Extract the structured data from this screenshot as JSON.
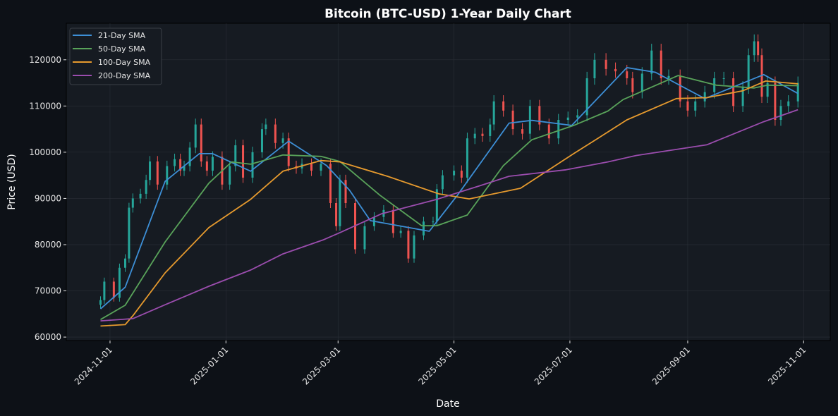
{
  "chart_data": {
    "type": "line",
    "title": "Bitcoin (BTC-USD) 1-Year Daily Chart",
    "xlabel": "Date",
    "ylabel": "Price (USD)",
    "ylim": [
      59250,
      127900
    ],
    "xlim": [
      "2024-10-09",
      "2025-11-15"
    ],
    "grid": true,
    "legend_placement": "top-left",
    "yticks": [
      60000,
      70000,
      80000,
      90000,
      100000,
      110000,
      120000
    ],
    "ytick_labels": [
      "60000",
      "70000",
      "80000",
      "90000",
      "100000",
      "110000",
      "120000"
    ],
    "xticks": [
      "2024-11-01",
      "2025-01-01",
      "2025-03-01",
      "2025-05-01",
      "2025-07-01",
      "2025-09-01",
      "2025-11-01"
    ],
    "colors": {
      "up": "#26a69a",
      "down": "#ef5350",
      "background": "#0d1117",
      "plot_bg": "#161b22"
    },
    "price_closes": [
      [
        "2024-10-27",
        68000
      ],
      [
        "2024-10-29",
        72000
      ],
      [
        "2024-11-03",
        68500
      ],
      [
        "2024-11-06",
        75000
      ],
      [
        "2024-11-09",
        77000
      ],
      [
        "2024-11-11",
        88000
      ],
      [
        "2024-11-13",
        90000
      ],
      [
        "2024-11-17",
        91000
      ],
      [
        "2024-11-20",
        94000
      ],
      [
        "2024-11-22",
        98000
      ],
      [
        "2024-11-26",
        93000
      ],
      [
        "2024-12-01",
        97000
      ],
      [
        "2024-12-05",
        98500
      ],
      [
        "2024-12-08",
        96000
      ],
      [
        "2024-12-10",
        97000
      ],
      [
        "2024-12-13",
        101000
      ],
      [
        "2024-12-16",
        106000
      ],
      [
        "2024-12-19",
        98000
      ],
      [
        "2024-12-22",
        96000
      ],
      [
        "2024-12-25",
        99000
      ],
      [
        "2024-12-30",
        93000
      ],
      [
        "2025-01-03",
        97000
      ],
      [
        "2025-01-06",
        101500
      ],
      [
        "2025-01-10",
        94500
      ],
      [
        "2025-01-15",
        100000
      ],
      [
        "2025-01-20",
        105000
      ],
      [
        "2025-01-22",
        106000
      ],
      [
        "2025-01-27",
        102000
      ],
      [
        "2025-01-31",
        103000
      ],
      [
        "2025-02-03",
        97000
      ],
      [
        "2025-02-07",
        96500
      ],
      [
        "2025-02-10",
        97500
      ],
      [
        "2025-02-15",
        96000
      ],
      [
        "2025-02-20",
        97500
      ],
      [
        "2025-02-25",
        89000
      ],
      [
        "2025-02-28",
        84000
      ],
      [
        "2025-03-02",
        94000
      ],
      [
        "2025-03-05",
        89000
      ],
      [
        "2025-03-10",
        79000
      ],
      [
        "2025-03-15",
        84000
      ],
      [
        "2025-03-20",
        86000
      ],
      [
        "2025-03-25",
        87500
      ],
      [
        "2025-03-30",
        82500
      ],
      [
        "2025-04-03",
        83000
      ],
      [
        "2025-04-07",
        77000
      ],
      [
        "2025-04-10",
        82000
      ],
      [
        "2025-04-15",
        85000
      ],
      [
        "2025-04-20",
        85000
      ],
      [
        "2025-04-22",
        92000
      ],
      [
        "2025-04-25",
        95000
      ],
      [
        "2025-05-01",
        96000
      ],
      [
        "2025-05-05",
        94500
      ],
      [
        "2025-05-08",
        103000
      ],
      [
        "2025-05-12",
        104000
      ],
      [
        "2025-05-16",
        103500
      ],
      [
        "2025-05-20",
        106000
      ],
      [
        "2025-05-22",
        111000
      ],
      [
        "2025-05-27",
        109000
      ],
      [
        "2025-06-01",
        105000
      ],
      [
        "2025-06-06",
        104000
      ],
      [
        "2025-06-10",
        110000
      ],
      [
        "2025-06-15",
        106000
      ],
      [
        "2025-06-20",
        103000
      ],
      [
        "2025-06-25",
        107000
      ],
      [
        "2025-06-30",
        107500
      ],
      [
        "2025-07-05",
        108000
      ],
      [
        "2025-07-10",
        116000
      ],
      [
        "2025-07-14",
        120000
      ],
      [
        "2025-07-20",
        118000
      ],
      [
        "2025-07-25",
        117500
      ],
      [
        "2025-07-31",
        116000
      ],
      [
        "2025-08-03",
        113000
      ],
      [
        "2025-08-08",
        117000
      ],
      [
        "2025-08-13",
        122000
      ],
      [
        "2025-08-18",
        116000
      ],
      [
        "2025-08-22",
        116500
      ],
      [
        "2025-08-28",
        111000
      ],
      [
        "2025-09-01",
        109000
      ],
      [
        "2025-09-05",
        111000
      ],
      [
        "2025-09-10",
        113000
      ],
      [
        "2025-09-15",
        116000
      ],
      [
        "2025-09-20",
        116000
      ],
      [
        "2025-09-25",
        110000
      ],
      [
        "2025-09-30",
        114000
      ],
      [
        "2025-10-03",
        121000
      ],
      [
        "2025-10-06",
        124000
      ],
      [
        "2025-10-08",
        121000
      ],
      [
        "2025-10-10",
        112000
      ],
      [
        "2025-10-13",
        115000
      ],
      [
        "2025-10-17",
        107000
      ],
      [
        "2025-10-20",
        110000
      ],
      [
        "2025-10-24",
        111000
      ],
      [
        "2025-10-29",
        115000
      ]
    ],
    "series": [
      {
        "name": "21-Day SMA",
        "color": "#3d8fd6",
        "points": [
          [
            "2024-10-27",
            66100
          ],
          [
            "2024-11-09",
            70800
          ],
          [
            "2024-11-30",
            93700
          ],
          [
            "2024-12-18",
            99700
          ],
          [
            "2024-12-25",
            99700
          ],
          [
            "2025-01-14",
            95900
          ],
          [
            "2025-02-03",
            102400
          ],
          [
            "2025-02-23",
            97100
          ],
          [
            "2025-03-07",
            91800
          ],
          [
            "2025-03-18",
            85200
          ],
          [
            "2025-04-18",
            82900
          ],
          [
            "2025-05-03",
            90800
          ],
          [
            "2025-05-30",
            106300
          ],
          [
            "2025-06-11",
            106900
          ],
          [
            "2025-07-02",
            105800
          ],
          [
            "2025-07-31",
            118300
          ],
          [
            "2025-08-15",
            117300
          ],
          [
            "2025-09-10",
            111600
          ],
          [
            "2025-10-11",
            116800
          ],
          [
            "2025-10-29",
            112700
          ]
        ]
      },
      {
        "name": "50-Day SMA",
        "color": "#59a35a",
        "points": [
          [
            "2024-10-27",
            63800
          ],
          [
            "2024-11-09",
            66900
          ],
          [
            "2024-11-30",
            80600
          ],
          [
            "2024-12-23",
            93300
          ],
          [
            "2025-01-04",
            97900
          ],
          [
            "2025-01-14",
            97400
          ],
          [
            "2025-01-31",
            99400
          ],
          [
            "2025-02-20",
            99100
          ],
          [
            "2025-03-02",
            98000
          ],
          [
            "2025-03-23",
            90700
          ],
          [
            "2025-04-14",
            84100
          ],
          [
            "2025-04-22",
            84100
          ],
          [
            "2025-05-08",
            86400
          ],
          [
            "2025-05-27",
            97100
          ],
          [
            "2025-06-11",
            102700
          ],
          [
            "2025-07-03",
            105800
          ],
          [
            "2025-07-21",
            108900
          ],
          [
            "2025-07-29",
            111400
          ],
          [
            "2025-08-27",
            116600
          ],
          [
            "2025-09-16",
            114500
          ],
          [
            "2025-10-06",
            113900
          ],
          [
            "2025-10-13",
            114500
          ],
          [
            "2025-10-29",
            114400
          ]
        ]
      },
      {
        "name": "100-Day SMA",
        "color": "#e69a2e",
        "points": [
          [
            "2024-10-27",
            62400
          ],
          [
            "2024-11-09",
            62700
          ],
          [
            "2024-11-13",
            64600
          ],
          [
            "2024-11-30",
            73900
          ],
          [
            "2024-12-23",
            83700
          ],
          [
            "2025-01-14",
            89800
          ],
          [
            "2025-01-31",
            95900
          ],
          [
            "2025-02-20",
            98200
          ],
          [
            "2025-03-02",
            97900
          ],
          [
            "2025-03-27",
            94800
          ],
          [
            "2025-04-23",
            91000
          ],
          [
            "2025-05-09",
            89900
          ],
          [
            "2025-06-05",
            92200
          ],
          [
            "2025-07-03",
            99700
          ],
          [
            "2025-07-15",
            102800
          ],
          [
            "2025-07-31",
            107000
          ],
          [
            "2025-08-26",
            111600
          ],
          [
            "2025-09-11",
            111800
          ],
          [
            "2025-09-30",
            113300
          ],
          [
            "2025-10-12",
            115400
          ],
          [
            "2025-10-29",
            114800
          ]
        ]
      },
      {
        "name": "200-Day SMA",
        "color": "#9b4dae",
        "points": [
          [
            "2024-10-27",
            63500
          ],
          [
            "2024-11-13",
            64000
          ],
          [
            "2024-11-30",
            67000
          ],
          [
            "2024-12-23",
            71000
          ],
          [
            "2025-01-14",
            74500
          ],
          [
            "2025-01-31",
            78000
          ],
          [
            "2025-02-21",
            81000
          ],
          [
            "2025-03-02",
            82600
          ],
          [
            "2025-03-24",
            86700
          ],
          [
            "2025-04-22",
            89800
          ],
          [
            "2025-05-15",
            92800
          ],
          [
            "2025-05-30",
            94800
          ],
          [
            "2025-06-29",
            96200
          ],
          [
            "2025-07-21",
            97900
          ],
          [
            "2025-08-05",
            99300
          ],
          [
            "2025-09-11",
            101600
          ],
          [
            "2025-10-11",
            106600
          ],
          [
            "2025-10-29",
            109200
          ]
        ]
      }
    ]
  }
}
